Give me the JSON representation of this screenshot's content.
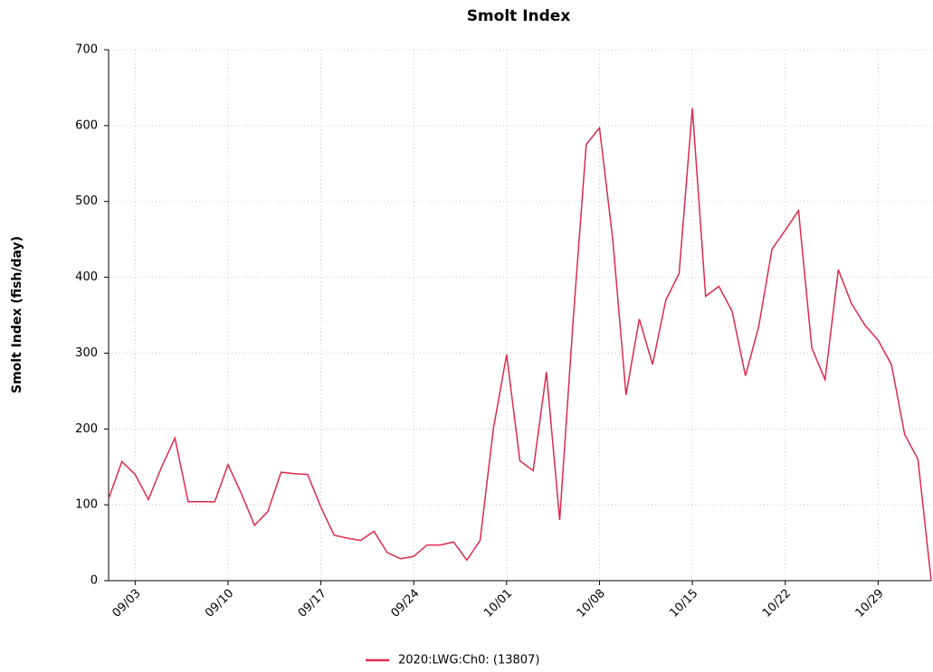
{
  "chart_data": {
    "type": "line",
    "title": "Smolt Index",
    "y_label": "Smolt Index (fish/day)",
    "categories": [
      null,
      null,
      "09/03",
      null,
      null,
      null,
      null,
      null,
      null,
      "09/10",
      null,
      null,
      null,
      null,
      null,
      null,
      "09/17",
      null,
      null,
      null,
      null,
      null,
      null,
      "09/24",
      null,
      null,
      null,
      null,
      null,
      null,
      "10/01",
      null,
      null,
      null,
      null,
      null,
      null,
      "10/08",
      null,
      null,
      null,
      null,
      null,
      null,
      "10/15",
      null,
      null,
      null,
      null,
      null,
      null,
      "10/22",
      null,
      null,
      null,
      null,
      null,
      null,
      "10/29",
      null,
      null,
      null,
      null
    ],
    "series": [
      {
        "name": "2020:LWG:Ch0: (13807)",
        "color": "#dc2a4c",
        "values": [
          108,
          157,
          140,
          107,
          150,
          188,
          104,
          104,
          104,
          153,
          115,
          73,
          91,
          143,
          141,
          140,
          97,
          60,
          56,
          53,
          65,
          37,
          29,
          32,
          47,
          47,
          51,
          27,
          53,
          200,
          298,
          158,
          145,
          275,
          80,
          340,
          575,
          597,
          450,
          245,
          345,
          285,
          370,
          405,
          623,
          375,
          388,
          355,
          270,
          335,
          437,
          462,
          488,
          307,
          265,
          410,
          365,
          337,
          317,
          285,
          193,
          160,
          0
        ]
      }
    ],
    "ylim": [
      0,
      700
    ],
    "yticks": [
      0,
      100,
      200,
      300,
      400,
      500,
      600,
      700
    ],
    "grid": true
  }
}
